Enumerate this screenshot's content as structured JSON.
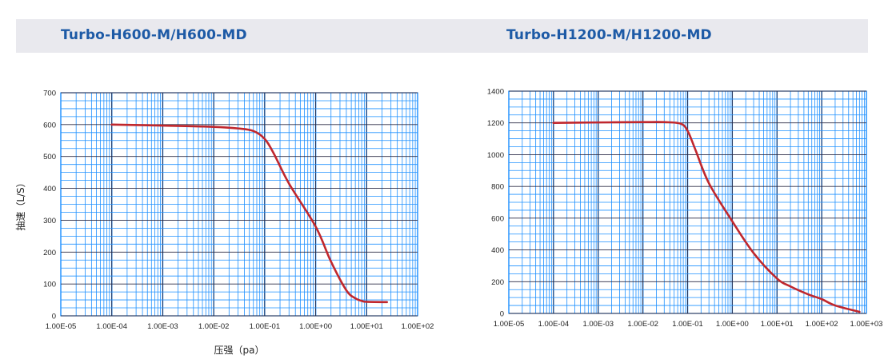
{
  "headers": {
    "left": "Turbo-H600-M/H600-MD",
    "right": "Turbo-H1200-M/H1200-MD"
  },
  "colors": {
    "grid": "#1e90ff",
    "curve": "#c0272d",
    "header_bg": "#e9e9ee",
    "header_text": "#1d5aa6"
  },
  "chart_data": [
    {
      "type": "line",
      "title": "Turbo-H600-M/H600-MD",
      "xlabel": "压强（pa）",
      "ylabel": "抽速（L/S）",
      "x_scale": "log",
      "xlim": [
        1e-05,
        100
      ],
      "ylim": [
        0,
        700
      ],
      "x_ticks": [
        "1.00E-05",
        "1.00E-04",
        "1.00E-03",
        "1.00E-02",
        "1.00E-01",
        "1.00E+00",
        "1.00E+01",
        "1.00E+02"
      ],
      "y_ticks": [
        "0",
        "100",
        "200",
        "300",
        "400",
        "500",
        "600",
        "700"
      ],
      "grid": true,
      "series": [
        {
          "x": [
            0.0001,
            0.001,
            0.01,
            0.03,
            0.06,
            0.1,
            0.15,
            0.3,
            1,
            2,
            4,
            6,
            8,
            10,
            25
          ],
          "y": [
            600,
            597,
            593,
            588,
            580,
            555,
            510,
            415,
            280,
            170,
            80,
            55,
            47,
            44,
            43
          ]
        }
      ]
    },
    {
      "type": "line",
      "title": "Turbo-H1200-M/H1200-MD",
      "x_scale": "log",
      "xlim": [
        1e-05,
        1000
      ],
      "ylim": [
        0,
        1400
      ],
      "x_ticks": [
        "1.00E-05",
        "1.00E-04",
        "1.00E-03",
        "1.00E-02",
        "1.00E-01",
        "1.00E+00",
        "1.00E+01",
        "1.00E+02",
        "1.00E+03"
      ],
      "y_ticks": [
        "0",
        "200",
        "400",
        "600",
        "800",
        "1000",
        "1200",
        "1400"
      ],
      "grid": true,
      "series": [
        {
          "x": [
            0.0001,
            0.001,
            0.01,
            0.03,
            0.07,
            0.1,
            0.15,
            0.3,
            1,
            3,
            10,
            20,
            50,
            100,
            200,
            700
          ],
          "y": [
            1200,
            1203,
            1205,
            1205,
            1195,
            1150,
            1030,
            820,
            580,
            380,
            220,
            170,
            120,
            90,
            50,
            10
          ]
        }
      ]
    }
  ]
}
